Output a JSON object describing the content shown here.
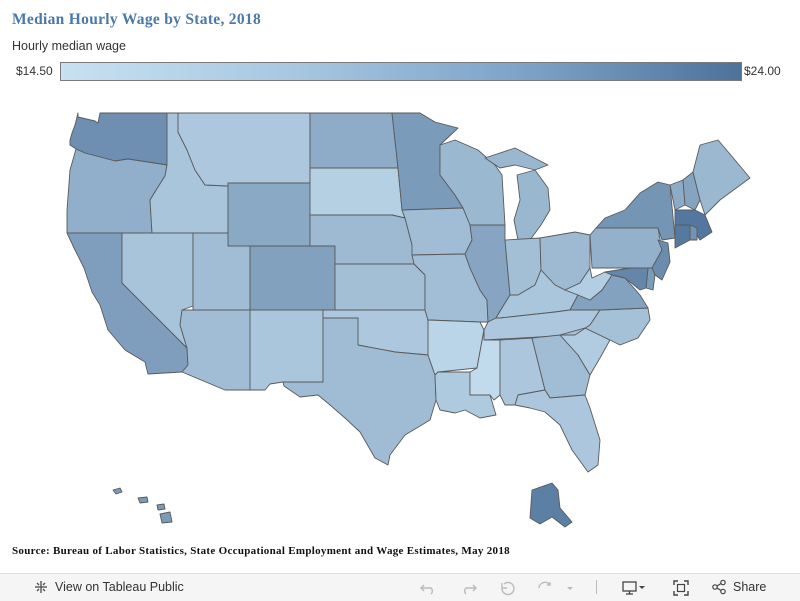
{
  "title": "Median Hourly Wage by State, 2018",
  "legend": {
    "title": "Hourly median wage",
    "min_label": "$14.50",
    "max_label": "$24.00",
    "min": 14.5,
    "max": 24.0,
    "color_low": "#c8e1f1",
    "color_high": "#4e729a"
  },
  "source": "Source: Bureau of Labor Statistics, State Occupational Employment and Wage Estimates, May 2018",
  "toolbar": {
    "view_label": "View on Tableau Public",
    "share_label": "Share",
    "icons": [
      "tableau-logo-icon",
      "undo-icon",
      "redo-icon",
      "revert-icon",
      "refresh-icon",
      "download-icon",
      "fullscreen-icon",
      "share-icon"
    ]
  },
  "states": [
    {
      "id": "WA",
      "wage": 21.5
    },
    {
      "id": "OR",
      "wage": 18.8
    },
    {
      "id": "CA",
      "wage": 20.2
    },
    {
      "id": "ID",
      "wage": 16.9
    },
    {
      "id": "NV",
      "wage": 17.0
    },
    {
      "id": "MT",
      "wage": 16.6
    },
    {
      "id": "WY",
      "wage": 19.3
    },
    {
      "id": "UT",
      "wage": 17.6
    },
    {
      "id": "CO",
      "wage": 20.0
    },
    {
      "id": "AZ",
      "wage": 17.6
    },
    {
      "id": "NM",
      "wage": 16.8
    },
    {
      "id": "ND",
      "wage": 19.0
    },
    {
      "id": "SD",
      "wage": 16.0
    },
    {
      "id": "NE",
      "wage": 17.8
    },
    {
      "id": "KS",
      "wage": 17.4
    },
    {
      "id": "OK",
      "wage": 16.6
    },
    {
      "id": "TX",
      "wage": 17.7
    },
    {
      "id": "MN",
      "wage": 20.5
    },
    {
      "id": "IA",
      "wage": 17.6
    },
    {
      "id": "MO",
      "wage": 17.5
    },
    {
      "id": "AR",
      "wage": 15.5
    },
    {
      "id": "LA",
      "wage": 16.5
    },
    {
      "id": "WI",
      "wage": 18.0
    },
    {
      "id": "IL",
      "wage": 19.6
    },
    {
      "id": "MI",
      "wage": 18.1
    },
    {
      "id": "IN",
      "wage": 17.4
    },
    {
      "id": "OH",
      "wage": 17.8
    },
    {
      "id": "KY",
      "wage": 16.8
    },
    {
      "id": "TN",
      "wage": 16.6
    },
    {
      "id": "MS",
      "wage": 15.0
    },
    {
      "id": "AL",
      "wage": 16.7
    },
    {
      "id": "GA",
      "wage": 17.6
    },
    {
      "id": "FL",
      "wage": 16.7
    },
    {
      "id": "SC",
      "wage": 16.3
    },
    {
      "id": "NC",
      "wage": 17.2
    },
    {
      "id": "VA",
      "wage": 19.9
    },
    {
      "id": "WV",
      "wage": 16.1
    },
    {
      "id": "PA",
      "wage": 18.6
    },
    {
      "id": "NY",
      "wage": 21.0
    },
    {
      "id": "VT",
      "wage": 19.1
    },
    {
      "id": "NH",
      "wage": 19.7
    },
    {
      "id": "ME",
      "wage": 18.0
    },
    {
      "id": "MA",
      "wage": 23.6
    },
    {
      "id": "RI",
      "wage": 21.2
    },
    {
      "id": "CT",
      "wage": 23.4
    },
    {
      "id": "NJ",
      "wage": 21.8
    },
    {
      "id": "DE",
      "wage": 20.5
    },
    {
      "id": "MD",
      "wage": 22.3
    },
    {
      "id": "AK",
      "wage": 22.9
    },
    {
      "id": "HI",
      "wage": 20.6
    }
  ]
}
